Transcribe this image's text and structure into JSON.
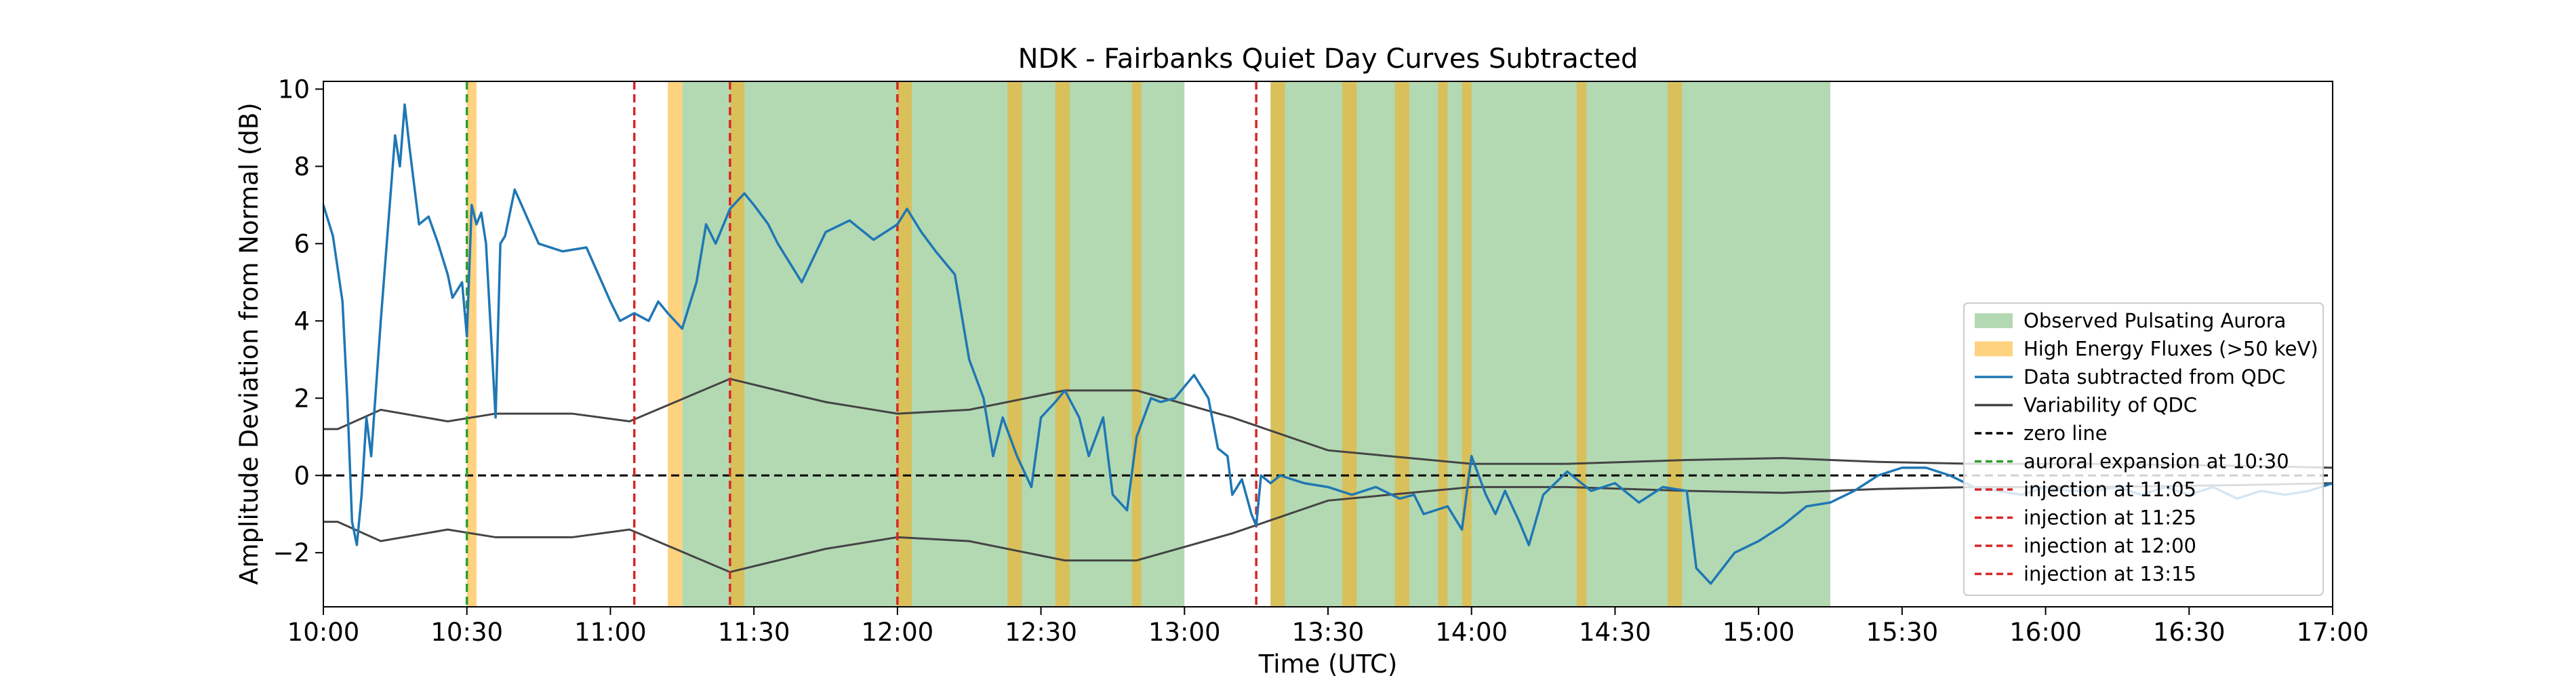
{
  "chart_data": {
    "type": "line",
    "title": "NDK - Fairbanks Quiet Day Curves Subtracted",
    "xlabel": "Time (UTC)",
    "ylabel": "Amplitude Deviation from Normal (dB)",
    "xlim": [
      "10:00",
      "17:00"
    ],
    "ylim": [
      -3.4,
      10.2
    ],
    "x_ticks": [
      "10:00",
      "10:30",
      "11:00",
      "11:30",
      "12:00",
      "12:30",
      "13:00",
      "13:30",
      "14:00",
      "14:30",
      "15:00",
      "15:30",
      "16:00",
      "16:30",
      "17:00"
    ],
    "y_ticks": [
      -2,
      0,
      2,
      4,
      6,
      8,
      10
    ],
    "grid": false,
    "legend_position": "lower-right",
    "legend": [
      "Observed Pulsating Aurora",
      "High Energy Fluxes (>50 keV)",
      "Data subtracted from QDC",
      "Variability of QDC",
      "zero line",
      "auroral expansion at 10:30",
      "injection at 11:05",
      "injection at 11:25",
      "injection at 12:00",
      "injection at 13:15"
    ],
    "colors": {
      "aurora": "#b3d9b3",
      "flux": "#ffd27f",
      "overlap": "#d9c05a",
      "data": "#1f77b4",
      "variability": "#444444",
      "zero": "#000000",
      "expansion": "#2ca02c",
      "injection": "#d62728"
    },
    "pulsating_aurora_intervals": [
      [
        "11:15",
        "13:00"
      ],
      [
        "13:18",
        "15:15"
      ]
    ],
    "high_energy_flux_intervals": [
      [
        "10:30",
        "10:32"
      ],
      [
        "11:12",
        "11:15"
      ],
      [
        "11:25",
        "11:28"
      ],
      [
        "12:00",
        "12:03"
      ],
      [
        "12:23",
        "12:26"
      ],
      [
        "12:33",
        "12:36"
      ],
      [
        "12:49",
        "12:51"
      ],
      [
        "13:18",
        "13:21"
      ],
      [
        "13:33",
        "13:36"
      ],
      [
        "13:44",
        "13:47"
      ],
      [
        "13:53",
        "13:55"
      ],
      [
        "13:58",
        "14:00"
      ],
      [
        "14:22",
        "14:24"
      ],
      [
        "14:41",
        "14:44"
      ]
    ],
    "vertical_lines": [
      {
        "time": "10:30",
        "kind": "expansion"
      },
      {
        "time": "11:05",
        "kind": "injection"
      },
      {
        "time": "11:25",
        "kind": "injection"
      },
      {
        "time": "12:00",
        "kind": "injection"
      },
      {
        "time": "13:15",
        "kind": "injection"
      }
    ],
    "zero_line": 0,
    "variability_qdc": {
      "x": [
        "10:00",
        "10:03",
        "10:12",
        "10:26",
        "10:36",
        "10:52",
        "11:04",
        "11:25",
        "11:45",
        "12:00",
        "12:15",
        "12:35",
        "12:50",
        "13:10",
        "13:30",
        "14:00",
        "14:20",
        "14:45",
        "15:05",
        "15:25",
        "15:45",
        "16:10",
        "16:40",
        "17:00"
      ],
      "upper": [
        1.2,
        1.2,
        1.7,
        1.4,
        1.6,
        1.6,
        1.4,
        2.5,
        1.9,
        1.6,
        1.7,
        2.2,
        2.2,
        1.5,
        0.65,
        0.3,
        0.3,
        0.4,
        0.45,
        0.35,
        0.3,
        0.3,
        0.25,
        0.2
      ],
      "lower": [
        -1.2,
        -1.2,
        -1.7,
        -1.4,
        -1.6,
        -1.6,
        -1.4,
        -2.5,
        -1.9,
        -1.6,
        -1.7,
        -2.2,
        -2.2,
        -1.5,
        -0.65,
        -0.3,
        -0.3,
        -0.4,
        -0.45,
        -0.35,
        -0.3,
        -0.3,
        -0.25,
        -0.2
      ]
    },
    "data_subtracted": {
      "x": [
        "10:00",
        "10:02",
        "10:04",
        "10:05",
        "10:06",
        "10:07",
        "10:08",
        "10:09",
        "10:10",
        "10:12",
        "10:15",
        "10:16",
        "10:17",
        "10:18",
        "10:20",
        "10:22",
        "10:24",
        "10:26",
        "10:27",
        "10:29",
        "10:30",
        "10:31",
        "10:32",
        "10:33",
        "10:34",
        "10:36",
        "10:37",
        "10:38",
        "10:40",
        "10:45",
        "10:50",
        "10:55",
        "11:00",
        "11:02",
        "11:05",
        "11:08",
        "11:10",
        "11:12",
        "11:15",
        "11:18",
        "11:20",
        "11:22",
        "11:25",
        "11:28",
        "11:30",
        "11:33",
        "11:35",
        "11:40",
        "11:45",
        "11:50",
        "11:55",
        "12:00",
        "12:02",
        "12:05",
        "12:08",
        "12:12",
        "12:15",
        "12:18",
        "12:20",
        "12:22",
        "12:25",
        "12:28",
        "12:30",
        "12:33",
        "12:35",
        "12:38",
        "12:40",
        "12:43",
        "12:45",
        "12:48",
        "12:50",
        "12:53",
        "12:55",
        "12:58",
        "13:00",
        "13:02",
        "13:05",
        "13:07",
        "13:09",
        "13:10",
        "13:12",
        "13:14",
        "13:15",
        "13:16",
        "13:18",
        "13:20",
        "13:25",
        "13:30",
        "13:35",
        "13:40",
        "13:45",
        "13:48",
        "13:50",
        "13:55",
        "13:58",
        "14:00",
        "14:03",
        "14:05",
        "14:07",
        "14:10",
        "14:12",
        "14:15",
        "14:20",
        "14:25",
        "14:30",
        "14:35",
        "14:40",
        "14:45",
        "14:47",
        "14:50",
        "14:55",
        "15:00",
        "15:05",
        "15:10",
        "15:15",
        "15:20",
        "15:25",
        "15:30",
        "15:35",
        "15:40",
        "15:45",
        "15:50",
        "15:55",
        "16:00",
        "16:05",
        "16:10",
        "16:15",
        "16:20",
        "16:25",
        "16:30",
        "16:35",
        "16:40",
        "16:45",
        "16:50",
        "16:55",
        "17:00"
      ],
      "y": [
        7.0,
        6.2,
        4.5,
        2.0,
        -1.2,
        -1.8,
        -0.5,
        1.5,
        0.5,
        4.0,
        8.8,
        8.0,
        9.6,
        8.5,
        6.5,
        6.7,
        6.0,
        5.2,
        4.6,
        5.0,
        3.6,
        7.0,
        6.5,
        6.8,
        6.0,
        1.5,
        6.0,
        6.2,
        7.4,
        6.0,
        5.8,
        5.9,
        4.5,
        4.0,
        4.2,
        4.0,
        4.5,
        4.2,
        3.8,
        5.0,
        6.5,
        6.0,
        6.9,
        7.3,
        7.0,
        6.5,
        6.0,
        5.0,
        6.3,
        6.6,
        6.1,
        6.5,
        6.9,
        6.3,
        5.8,
        5.2,
        3.0,
        2.0,
        0.5,
        1.5,
        0.5,
        -0.3,
        1.5,
        1.9,
        2.2,
        1.5,
        0.5,
        1.5,
        -0.5,
        -0.9,
        1.0,
        2.0,
        1.9,
        2.0,
        2.3,
        2.6,
        2.0,
        0.7,
        0.5,
        -0.5,
        -0.1,
        -1.0,
        -1.3,
        0.0,
        -0.2,
        0.0,
        -0.2,
        -0.3,
        -0.5,
        -0.3,
        -0.6,
        -0.5,
        -1.0,
        -0.8,
        -1.4,
        0.5,
        -0.5,
        -1.0,
        -0.4,
        -1.2,
        -1.8,
        -0.5,
        0.1,
        -0.4,
        -0.2,
        -0.7,
        -0.3,
        -0.4,
        -2.4,
        -2.8,
        -2.0,
        -1.7,
        -1.3,
        -0.8,
        -0.7,
        -0.4,
        0.0,
        0.2,
        0.2,
        0.0,
        -0.3,
        -0.4,
        -0.5,
        -0.3,
        -0.4,
        -0.4,
        -0.3,
        -0.5,
        -0.3,
        -0.5,
        -0.3,
        -0.6,
        -0.4,
        -0.5,
        -0.4,
        -0.2
      ]
    }
  }
}
